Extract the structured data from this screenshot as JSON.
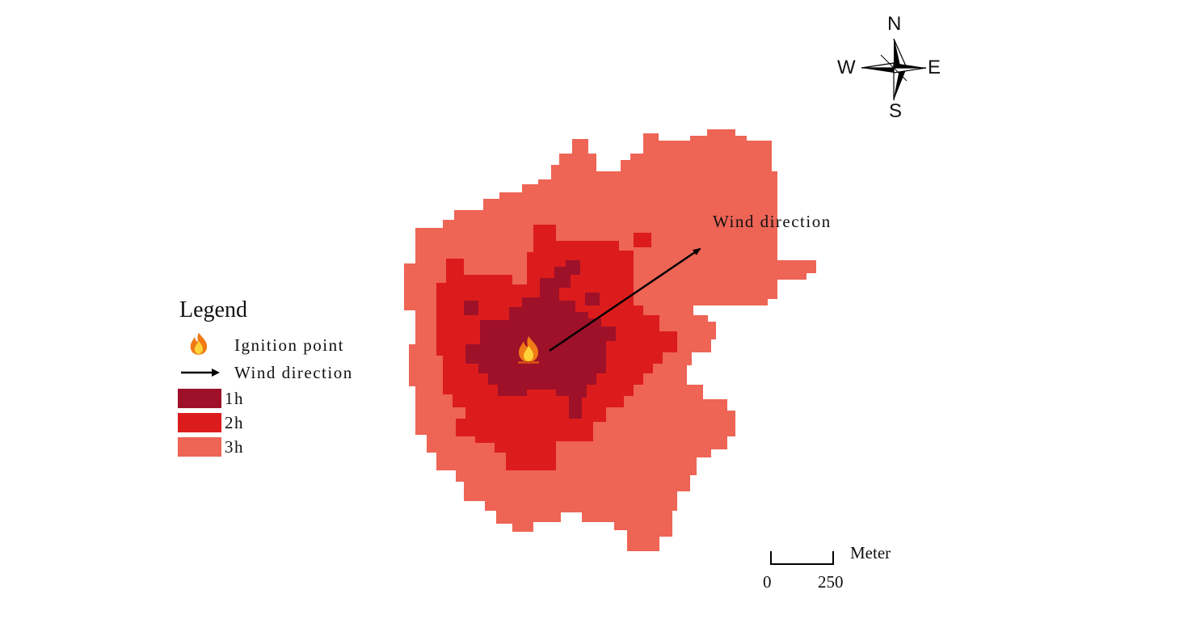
{
  "legend": {
    "title": "Legend",
    "ignition_label": "Ignition point",
    "wind_label": "Wind direction",
    "zones": [
      {
        "label": "1h",
        "color": "#9e1129"
      },
      {
        "label": "2h",
        "color": "#dc1c1c"
      },
      {
        "label": "3h",
        "color": "#ee6455"
      }
    ]
  },
  "map": {
    "wind_annotation": "Wind direction",
    "ignition_icon": "flame-icon"
  },
  "compass": {
    "north": "N",
    "south": "S",
    "east": "E",
    "west": "W"
  },
  "scale_bar": {
    "unit": "Meter",
    "start": "0",
    "end": "250"
  }
}
